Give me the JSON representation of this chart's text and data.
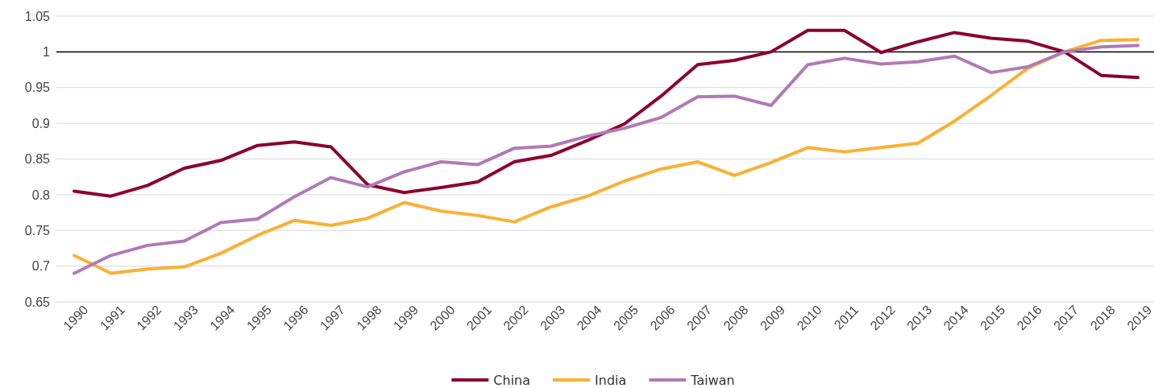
{
  "chart_data": {
    "type": "line",
    "categories": [
      "1990",
      "1991",
      "1992",
      "1993",
      "1994",
      "1995",
      "1996",
      "1997",
      "1998",
      "1999",
      "2000",
      "2001",
      "2002",
      "2003",
      "2004",
      "2005",
      "2006",
      "2007",
      "2008",
      "2009",
      "2010",
      "2011",
      "2012",
      "2013",
      "2014",
      "2015",
      "2016",
      "2017",
      "2018",
      "2019"
    ],
    "series": [
      {
        "name": "China",
        "color": "#8b0030",
        "values": [
          0.805,
          0.798,
          0.813,
          0.837,
          0.848,
          0.869,
          0.874,
          0.867,
          0.814,
          0.803,
          0.81,
          0.818,
          0.846,
          0.855,
          0.876,
          0.899,
          0.938,
          0.982,
          0.988,
          1.0,
          1.03,
          1.03,
          0.999,
          1.014,
          1.027,
          1.019,
          1.015,
          1.0,
          0.967,
          0.964
        ]
      },
      {
        "name": "India",
        "color": "#fbb034",
        "values": [
          0.715,
          0.69,
          0.696,
          0.699,
          0.718,
          0.743,
          0.764,
          0.757,
          0.767,
          0.789,
          0.777,
          0.771,
          0.762,
          0.783,
          0.798,
          0.819,
          0.836,
          0.846,
          0.827,
          0.845,
          0.866,
          0.86,
          0.866,
          0.872,
          0.903,
          0.939,
          0.977,
          1.0,
          1.016,
          1.017
        ]
      },
      {
        "name": "Taiwan",
        "color": "#b07ab5",
        "values": [
          0.69,
          0.715,
          0.729,
          0.735,
          0.761,
          0.766,
          0.797,
          0.824,
          0.811,
          0.832,
          0.846,
          0.842,
          0.865,
          0.868,
          0.882,
          0.893,
          0.908,
          0.937,
          0.938,
          0.925,
          0.982,
          0.991,
          0.983,
          0.986,
          0.994,
          0.971,
          0.979,
          1.0,
          1.007,
          1.009
        ]
      }
    ],
    "ylim": [
      0.65,
      1.05
    ],
    "yticks": [
      0.65,
      0.7,
      0.75,
      0.8,
      0.85,
      0.9,
      0.95,
      1,
      1.05
    ],
    "grid": "y",
    "legend": "bottom",
    "marker": "none",
    "line_style": "solid",
    "ref_lines": [
      {
        "axis": "y",
        "value": 1,
        "color": "#000000"
      }
    ]
  }
}
